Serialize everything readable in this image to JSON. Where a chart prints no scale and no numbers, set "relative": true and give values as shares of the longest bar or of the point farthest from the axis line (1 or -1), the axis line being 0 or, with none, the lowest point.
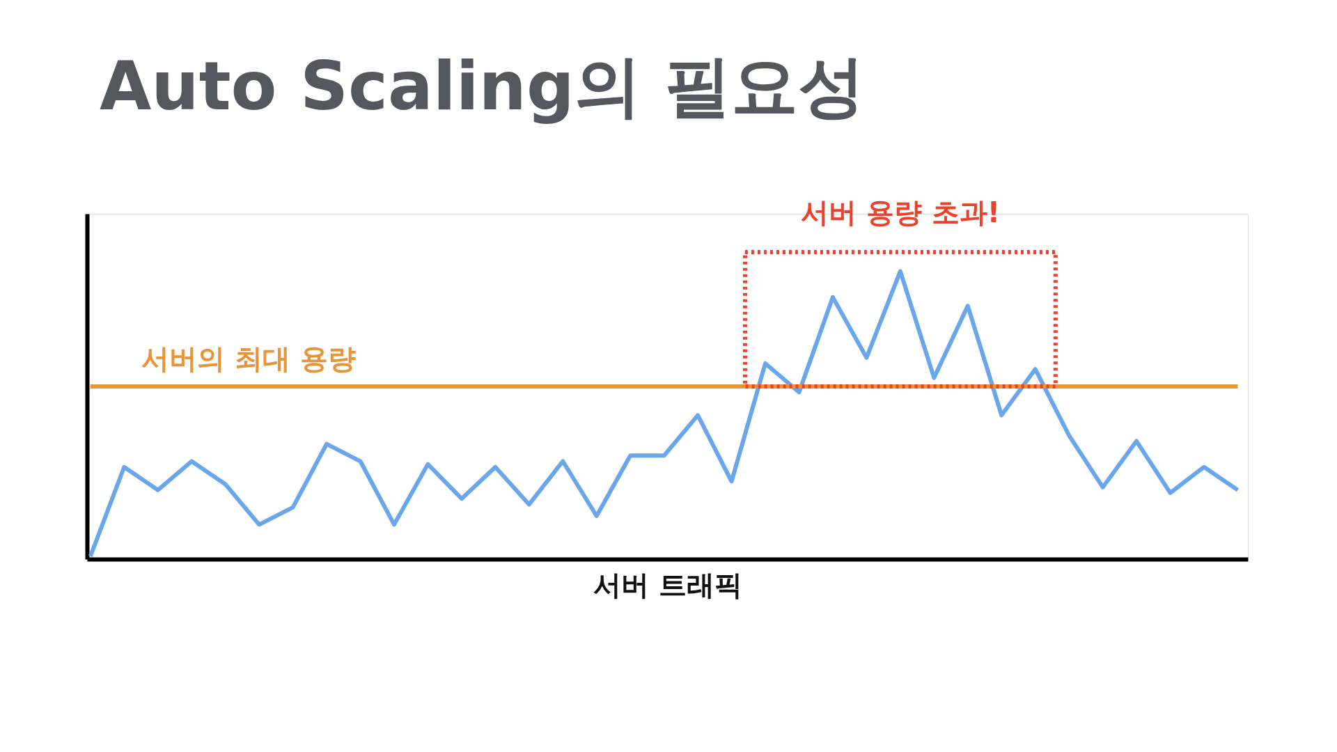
{
  "chart_data": {
    "type": "line",
    "title": "Auto Scaling의 필요성",
    "xlabel": "서버 트래픽",
    "relative": true,
    "tick_labels": false,
    "grid": false,
    "marker": "none",
    "line_style": "solid",
    "categories": [
      null,
      null,
      null,
      null,
      null,
      null,
      null,
      null,
      null,
      null,
      null,
      null,
      null,
      null,
      null,
      null,
      null,
      null,
      null,
      null,
      null,
      null,
      null,
      null,
      null,
      null,
      null,
      null,
      null,
      null,
      null,
      null,
      null,
      null,
      null
    ],
    "series": [
      {
        "color": "#6aa6ec",
        "values": [
          0.01,
          0.32,
          0.24,
          0.34,
          0.26,
          0.12,
          0.18,
          0.4,
          0.34,
          0.12,
          0.33,
          0.21,
          0.32,
          0.19,
          0.34,
          0.15,
          0.36,
          0.36,
          0.5,
          0.27,
          0.68,
          0.58,
          0.91,
          0.7,
          1.0,
          0.63,
          0.88,
          0.5,
          0.66,
          0.43,
          0.25,
          0.41,
          0.23,
          0.32,
          0.24
        ]
      },
      {
        "name": "서버의 최대 용량",
        "color": "#e8953a",
        "values": [
          0.6,
          0.6,
          0.6,
          0.6,
          0.6,
          0.6,
          0.6,
          0.6,
          0.6,
          0.6,
          0.6,
          0.6,
          0.6,
          0.6,
          0.6,
          0.6,
          0.6,
          0.6,
          0.6,
          0.6,
          0.6,
          0.6,
          0.6,
          0.6,
          0.6,
          0.6,
          0.6,
          0.6,
          0.6,
          0.6,
          0.6,
          0.6,
          0.6,
          0.6,
          0.6
        ]
      }
    ],
    "annotations": [
      "서버 용량 초과!"
    ]
  }
}
